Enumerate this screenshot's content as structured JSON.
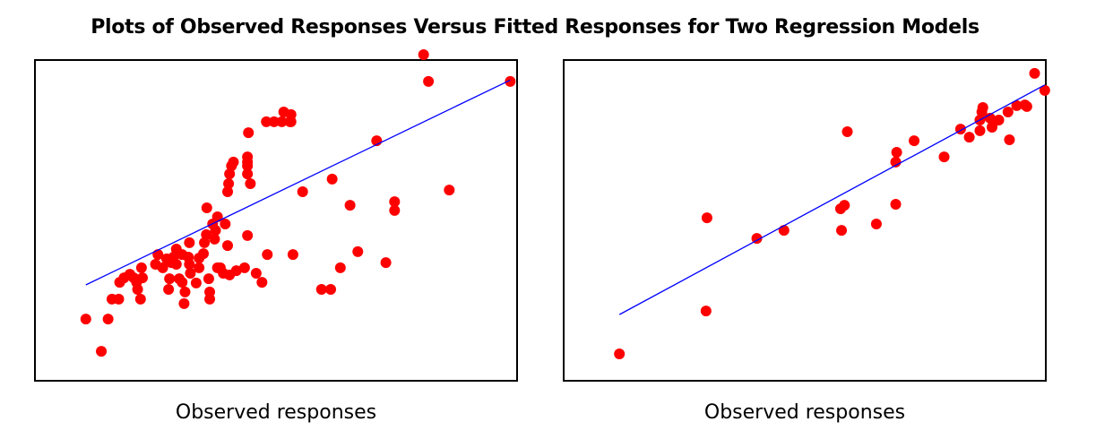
{
  "title": "Plots of Observed Responses Versus Fitted Responses for Two Regression Models",
  "colors": {
    "points": "#ff0000",
    "line": "#0000ff",
    "frame": "#000000"
  },
  "chart_data": [
    {
      "type": "scatter",
      "title": "",
      "xlabel": "Observed responses",
      "ylabel": "",
      "xlim": [
        0,
        100
      ],
      "ylim": [
        0,
        100
      ],
      "grid": false,
      "series": [
        {
          "points": [
            [
              10.7,
              19.4
            ],
            [
              13.9,
              9.4
            ],
            [
              15.3,
              19.4
            ],
            [
              16.1,
              25.6
            ],
            [
              17.5,
              25.6
            ],
            [
              17.7,
              30.8
            ],
            [
              18.6,
              32.2
            ],
            [
              19.8,
              33.3
            ],
            [
              20.6,
              32.2
            ],
            [
              21.2,
              30.8
            ],
            [
              21.4,
              28.6
            ],
            [
              22,
              25.6
            ],
            [
              22.2,
              35.3
            ],
            [
              22.4,
              32.2
            ],
            [
              25.1,
              36.4
            ],
            [
              25.6,
              39.4
            ],
            [
              26.6,
              35.3
            ],
            [
              27.4,
              38.1
            ],
            [
              27.8,
              28.6
            ],
            [
              28,
              31.9
            ],
            [
              28.4,
              36.9
            ],
            [
              28.8,
              38.6
            ],
            [
              29.4,
              36.4
            ],
            [
              29.4,
              41.1
            ],
            [
              30,
              31.9
            ],
            [
              30.6,
              30.8
            ],
            [
              30.6,
              39.4
            ],
            [
              31,
              24.2
            ],
            [
              31.2,
              27.8
            ],
            [
              31.9,
              38.6
            ],
            [
              32.1,
              36.4
            ],
            [
              32.1,
              43.1
            ],
            [
              32.3,
              33.6
            ],
            [
              33.5,
              30.6
            ],
            [
              34.1,
              38.3
            ],
            [
              34.1,
              35.3
            ],
            [
              35,
              39.7
            ],
            [
              35.2,
              43.1
            ],
            [
              35.6,
              45.6
            ],
            [
              35.7,
              53.9
            ],
            [
              36.1,
              31.9
            ],
            [
              36.3,
              27.8
            ],
            [
              36.3,
              25.6
            ],
            [
              36.9,
              48.9
            ],
            [
              37.3,
              44.2
            ],
            [
              37.5,
              46.9
            ],
            [
              37.9,
              35.3
            ],
            [
              37.9,
              51.1
            ],
            [
              38.5,
              35.3
            ],
            [
              39.1,
              33.6
            ],
            [
              39.5,
              48.9
            ],
            [
              40,
              42.2
            ],
            [
              40,
              58.9
            ],
            [
              40.2,
              61.4
            ],
            [
              40.4,
              33.1
            ],
            [
              40.4,
              64.4
            ],
            [
              40.8,
              66.9
            ],
            [
              41.2,
              68.1
            ],
            [
              41.8,
              34.4
            ],
            [
              43.5,
              35.3
            ],
            [
              44.1,
              45.3
            ],
            [
              44.1,
              64.4
            ],
            [
              44.1,
              66.9
            ],
            [
              44.1,
              68.1
            ],
            [
              44.1,
              69.7
            ],
            [
              44.3,
              77.2
            ],
            [
              44.7,
              61.4
            ],
            [
              45.9,
              33.6
            ],
            [
              47.1,
              30.8
            ],
            [
              48,
              80.6
            ],
            [
              48.2,
              39.4
            ],
            [
              49.6,
              80.6
            ],
            [
              51.2,
              80.6
            ],
            [
              51.6,
              83.6
            ],
            [
              52.9,
              80.6
            ],
            [
              53.1,
              80.6
            ],
            [
              53.1,
              82.8
            ],
            [
              53.5,
              39.4
            ],
            [
              55.5,
              58.9
            ],
            [
              59.4,
              28.6
            ],
            [
              61.3,
              28.6
            ],
            [
              61.6,
              62.8
            ],
            [
              63.3,
              35.3
            ],
            [
              65.3,
              54.7
            ],
            [
              66.9,
              40.3
            ],
            [
              70.8,
              74.7
            ],
            [
              72.7,
              36.9
            ],
            [
              74.5,
              53.1
            ],
            [
              74.5,
              55.8
            ],
            [
              80.5,
              101.4
            ],
            [
              81.5,
              93.1
            ],
            [
              85.8,
              59.4
            ],
            [
              98.4,
              93.1
            ]
          ]
        },
        {
          "name": "fit",
          "type": "line",
          "x": [
            10.7,
            98.4
          ],
          "y": [
            30.0,
            93.5
          ]
        }
      ]
    },
    {
      "type": "scatter",
      "title": "",
      "xlabel": "Observed responses",
      "ylabel": "",
      "xlim": [
        0,
        100
      ],
      "ylim": [
        0,
        100
      ],
      "grid": false,
      "series": [
        {
          "points": [
            [
              11.7,
              8.6
            ],
            [
              29.6,
              21.9
            ],
            [
              29.8,
              50.8
            ],
            [
              40.1,
              44.4
            ],
            [
              45.7,
              46.9
            ],
            [
              57.4,
              53.6
            ],
            [
              57.6,
              46.9
            ],
            [
              58.2,
              54.7
            ],
            [
              58.8,
              77.5
            ],
            [
              64.8,
              48.9
            ],
            [
              68.8,
              55
            ],
            [
              68.8,
              68.1
            ],
            [
              69,
              71.1
            ],
            [
              72.6,
              74.7
            ],
            [
              78.8,
              69.7
            ],
            [
              82.2,
              78.3
            ],
            [
              84,
              75.8
            ],
            [
              86.2,
              77.8
            ],
            [
              86.2,
              81.1
            ],
            [
              86.6,
              83.6
            ],
            [
              86.8,
              85
            ],
            [
              88.3,
              81.7
            ],
            [
              88.7,
              78.9
            ],
            [
              89.1,
              80.6
            ],
            [
              90.1,
              81.1
            ],
            [
              92,
              83.6
            ],
            [
              92.3,
              75
            ],
            [
              93.8,
              85.6
            ],
            [
              95.5,
              85.8
            ],
            [
              95.9,
              85.3
            ],
            [
              97.5,
              95.6
            ],
            [
              99.6,
              90.3
            ]
          ]
        },
        {
          "name": "fit",
          "type": "line",
          "x": [
            11.7,
            99.6
          ],
          "y": [
            20.8,
            92.0
          ]
        }
      ]
    }
  ]
}
